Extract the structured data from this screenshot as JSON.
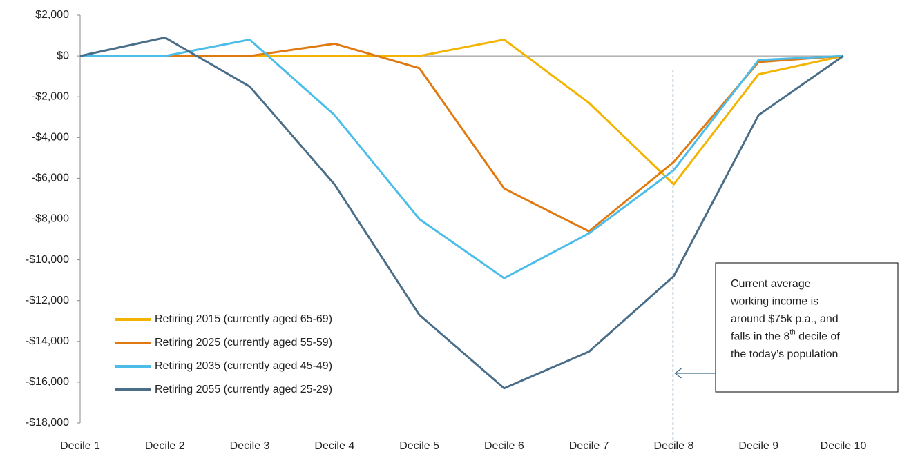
{
  "chart_data": {
    "type": "line",
    "categories": [
      "Decile 1",
      "Decile 2",
      "Decile 3",
      "Decile 4",
      "Decile 5",
      "Decile 6",
      "Decile 7",
      "Decile 8",
      "Decile 9",
      "Decile 10"
    ],
    "series": [
      {
        "name": "Retiring 2015 (currently aged 65-69)",
        "color": "#f2b400",
        "values": [
          0,
          0,
          0,
          0,
          0,
          800,
          -2300,
          -6300,
          -900,
          0
        ]
      },
      {
        "name": "Retiring 2025 (currently aged 55-59)",
        "color": "#e07a10",
        "values": [
          0,
          0,
          0,
          600,
          -600,
          -6500,
          -8600,
          -5200,
          -300,
          0
        ]
      },
      {
        "name": "Retiring 2035 (currently aged 45-49)",
        "color": "#4cbde8",
        "values": [
          0,
          0,
          800,
          -2900,
          -8000,
          -10900,
          -8700,
          -5600,
          -200,
          0
        ]
      },
      {
        "name": "Retiring 2055 (currently aged 25-29)",
        "color": "#4a6d88",
        "values": [
          0,
          900,
          -1500,
          -6300,
          -12700,
          -16300,
          -14500,
          -10800,
          -2900,
          0
        ]
      }
    ],
    "ylim": [
      -18000,
      2000
    ],
    "yticks": [
      {
        "value": 2000,
        "label": "$2,000"
      },
      {
        "value": 0,
        "label": "$0"
      },
      {
        "value": -2000,
        "label": "-$2,000"
      },
      {
        "value": -4000,
        "label": "-$4,000"
      },
      {
        "value": -6000,
        "label": "-$6,000"
      },
      {
        "value": -8000,
        "label": "-$8,000"
      },
      {
        "value": -10000,
        "label": "-$10,000"
      },
      {
        "value": -12000,
        "label": "-$12,000"
      },
      {
        "value": -14000,
        "label": "-$14,000"
      },
      {
        "value": -16000,
        "label": "-$16,000"
      },
      {
        "value": -18000,
        "label": "-$18,000"
      }
    ],
    "grid": false,
    "legend": "lower left",
    "annotation": {
      "lines": [
        "Current average",
        "working income is",
        "around $75k p.a., and",
        "falls in the 8",
        "the today’s population"
      ],
      "sup": "th",
      "after": " decile of"
    }
  }
}
